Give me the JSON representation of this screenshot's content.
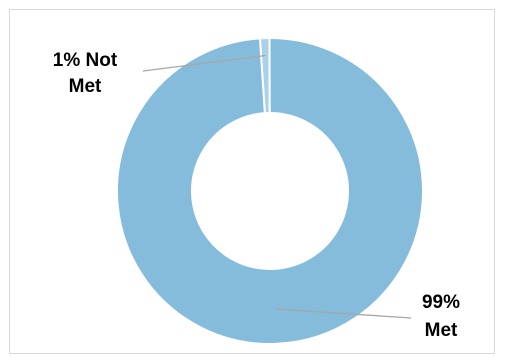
{
  "chart_data": {
    "type": "pie",
    "variant": "doughnut",
    "slices": [
      {
        "label": "Not Met",
        "value": 1,
        "color": "#a9d2ea"
      },
      {
        "label": "Met",
        "value": 99,
        "color": "#85bcdc"
      }
    ],
    "data_labels": [
      {
        "line1": "1% Not",
        "line2": "Met"
      },
      {
        "line1": "99%",
        "line2": "Met"
      }
    ],
    "legend": "none"
  },
  "colors": {
    "leader_line": "#a6a6a6",
    "slice_border": "#ffffff",
    "frame_border": "#d9d9d9"
  }
}
